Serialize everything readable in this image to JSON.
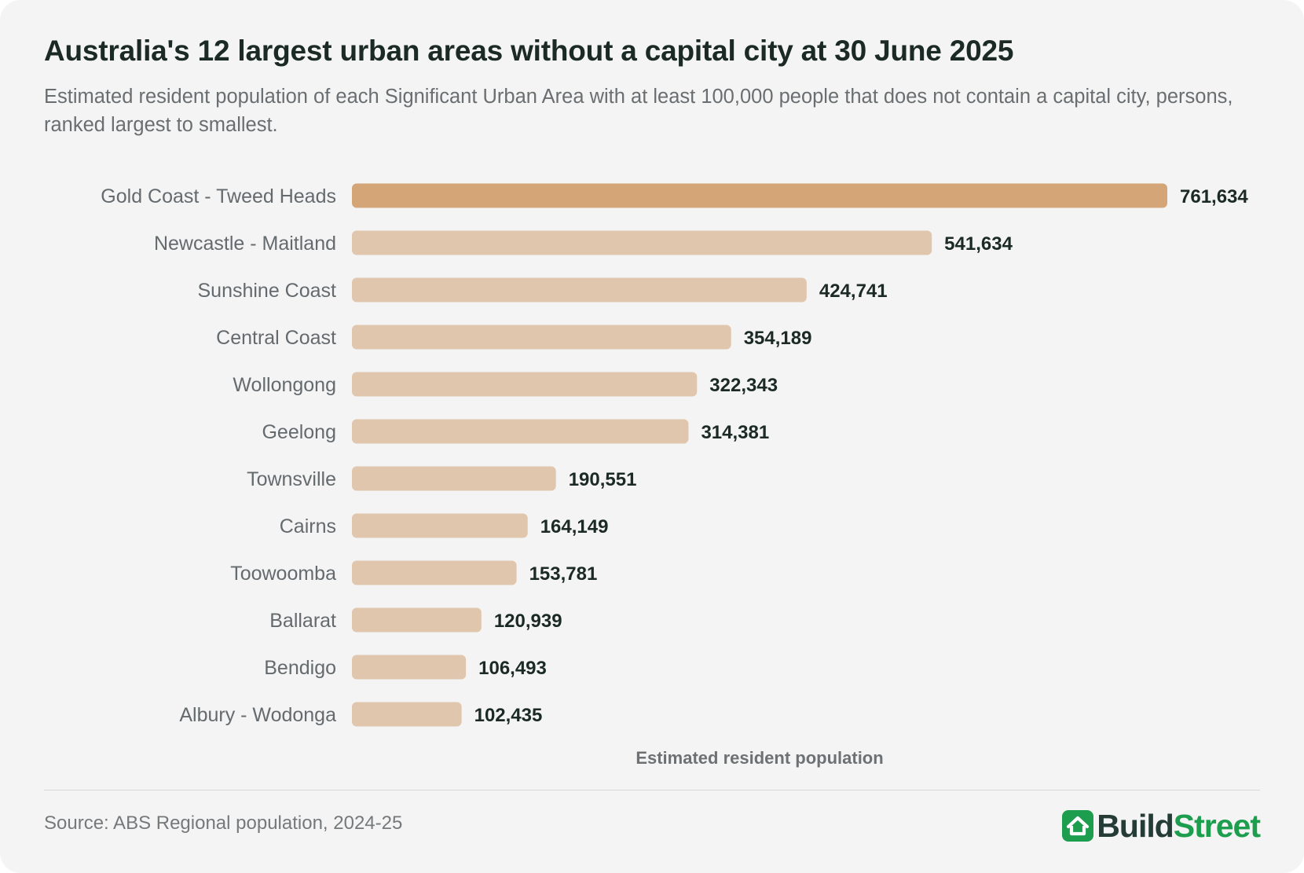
{
  "header": {
    "title": "Australia's 12 largest urban areas without a capital city at 30 June 2025",
    "subtitle": "Estimated resident population of each Significant Urban Area with at least 100,000 people that does not contain a capital city, persons, ranked largest to smallest."
  },
  "footer": {
    "source": "Source: ABS Regional population, 2024-25",
    "logo": {
      "part1": "Build",
      "part2": "Street",
      "icon": "house-icon",
      "color_dark": "#243b36",
      "color_green": "#1d9e4f"
    }
  },
  "colors": {
    "highlight_bar": "#d4a677",
    "bar": "#e1c6ae",
    "value_label": "#1c2a25",
    "category_label": "#646a6d",
    "axis_label": "#6d7173"
  },
  "chart_data": {
    "type": "bar",
    "orientation": "horizontal",
    "title": "Australia's 12 largest urban areas without a capital city at 30 June 2025",
    "subtitle": "Estimated resident population of each Significant Urban Area with at least 100,000 people that does not contain a capital city, persons, ranked largest to smallest.",
    "xlabel": "Estimated resident population",
    "ylabel": "",
    "xlim": [
      0,
      761634
    ],
    "grid": false,
    "legend": "none",
    "highlight": "Gold Coast - Tweed Heads",
    "categories": [
      "Gold Coast - Tweed Heads",
      "Newcastle - Maitland",
      "Sunshine Coast",
      "Central Coast",
      "Wollongong",
      "Geelong",
      "Townsville",
      "Cairns",
      "Toowoomba",
      "Ballarat",
      "Bendigo",
      "Albury - Wodonga"
    ],
    "values": [
      761634,
      541634,
      424741,
      354189,
      322343,
      314381,
      190551,
      164149,
      153781,
      120939,
      106493,
      102435
    ],
    "value_labels": [
      "761,634",
      "541,634",
      "424,741",
      "354,189",
      "322,343",
      "314,381",
      "190,551",
      "164,149",
      "153,781",
      "120,939",
      "106,493",
      "102,435"
    ]
  }
}
